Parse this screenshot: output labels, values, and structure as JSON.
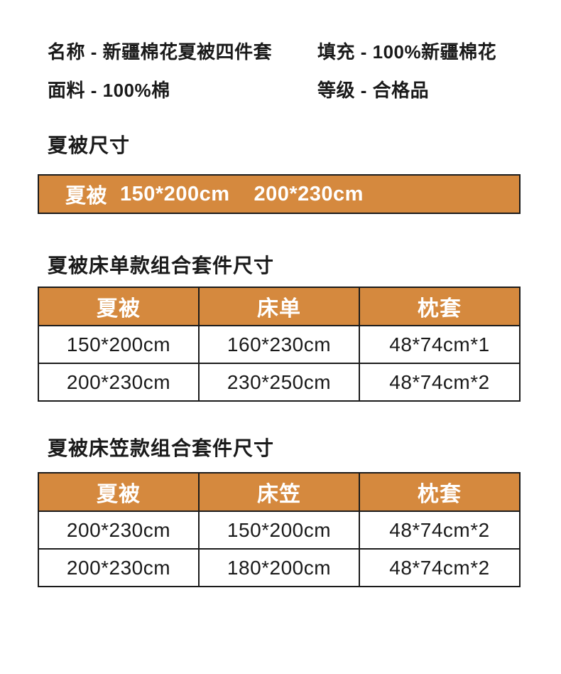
{
  "colors": {
    "page_bg": "#ffffff",
    "accent_orange": "#d5893e",
    "border_dark": "#1b1b1b",
    "text_dark": "#1a1a1a",
    "header_text": "#ffffff"
  },
  "info": {
    "separator": " - ",
    "items": [
      {
        "label": "名称",
        "value": "新疆棉花夏被四件套"
      },
      {
        "label": "填充",
        "value": "100%新疆棉花"
      },
      {
        "label": "面料",
        "value": "100%棉"
      },
      {
        "label": "等级",
        "value": "合格品"
      }
    ]
  },
  "quilt_size": {
    "heading": "夏被尺寸",
    "bar": {
      "label": "夏被",
      "sizes": [
        "150*200cm",
        "200*230cm"
      ]
    }
  },
  "sheet_table": {
    "heading": "夏被床单款组合套件尺寸",
    "columns": [
      "夏被",
      "床单",
      "枕套"
    ],
    "rows": [
      [
        "150*200cm",
        "160*230cm",
        "48*74cm*1"
      ],
      [
        "200*230cm",
        "230*250cm",
        "48*74cm*2"
      ]
    ]
  },
  "fitted_table": {
    "heading": "夏被床笠款组合套件尺寸",
    "columns": [
      "夏被",
      "床笠",
      "枕套"
    ],
    "rows": [
      [
        "200*230cm",
        "150*200cm",
        "48*74cm*2"
      ],
      [
        "200*230cm",
        "180*200cm",
        "48*74cm*2"
      ]
    ]
  }
}
